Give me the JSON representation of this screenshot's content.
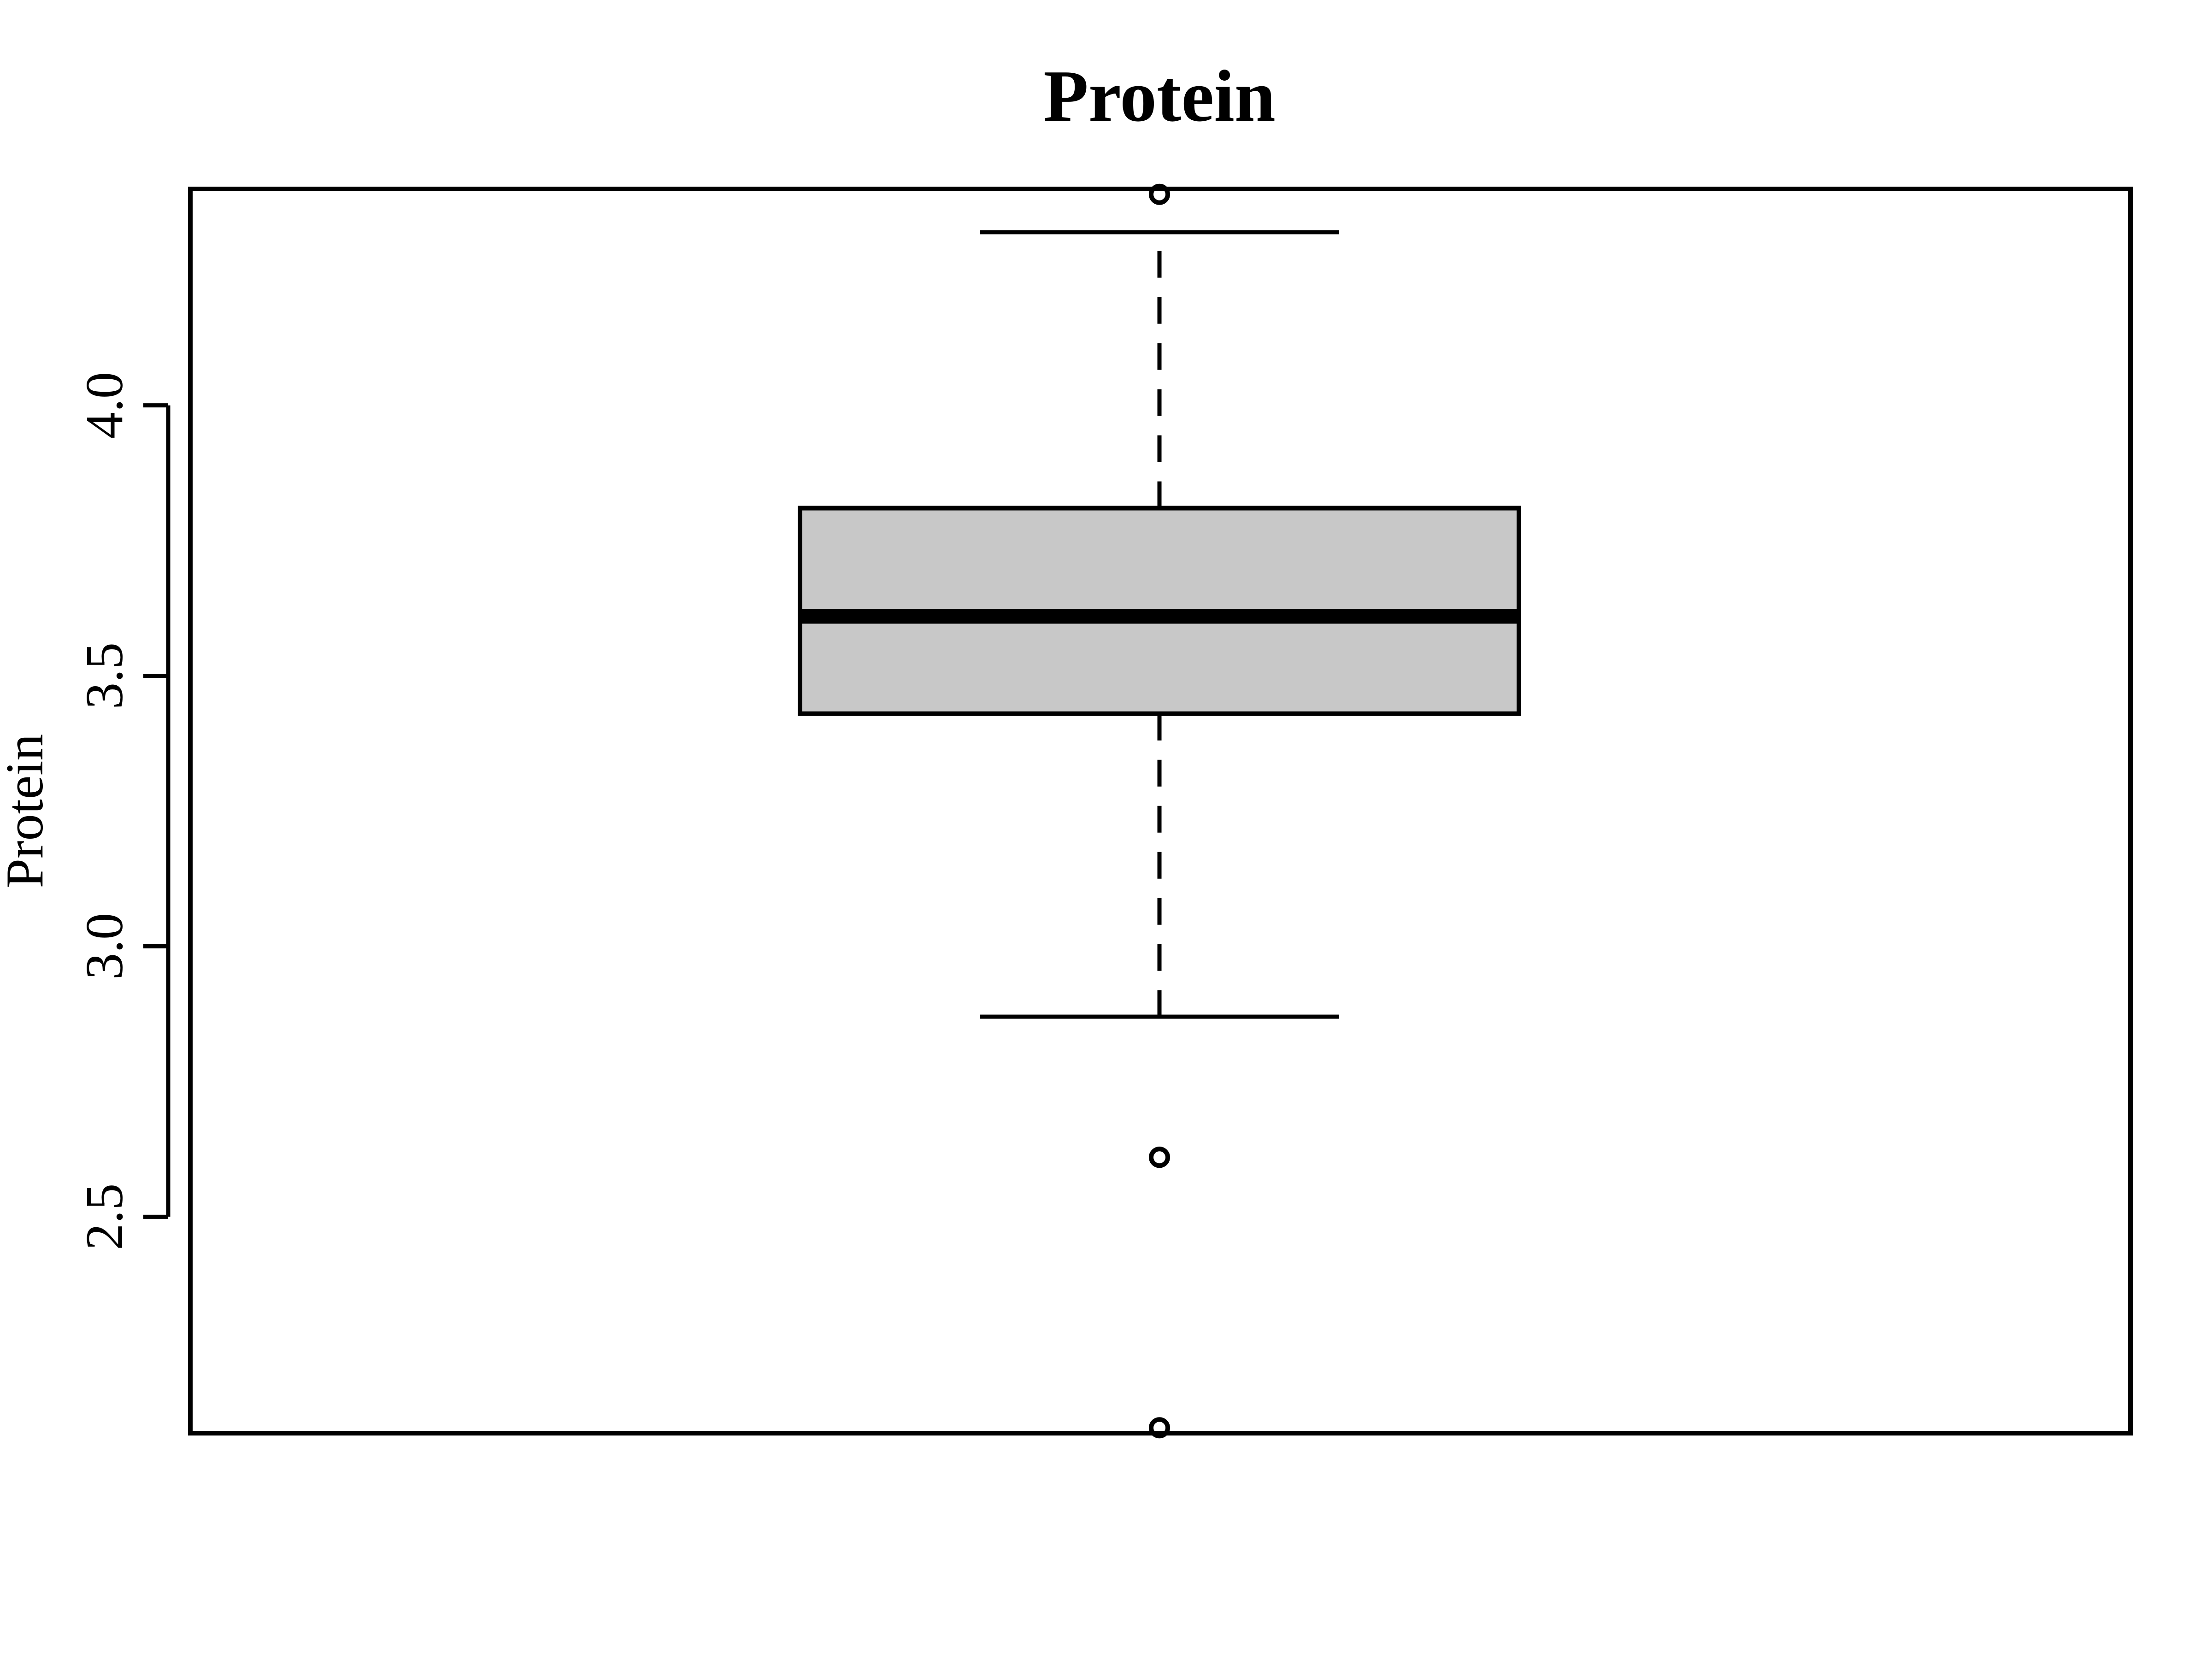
{
  "chart_data": {
    "type": "boxplot",
    "title": "Protein",
    "ylabel": "Protein",
    "xlabel": "",
    "ylim": [
      2.1,
      4.4
    ],
    "yticks": [
      2.5,
      3.0,
      3.5,
      4.0
    ],
    "ytick_labels": [
      "2.5",
      "3.0",
      "3.5",
      "4.0"
    ],
    "box": {
      "whisker_low": 2.87,
      "q1": 3.43,
      "median": 3.61,
      "q3": 3.81,
      "whisker_high": 4.32,
      "outliers": [
        4.39,
        2.61,
        2.11
      ]
    },
    "box_fill": "#c8c8c8",
    "line_color": "#000000",
    "grid": false,
    "legend": false
  }
}
